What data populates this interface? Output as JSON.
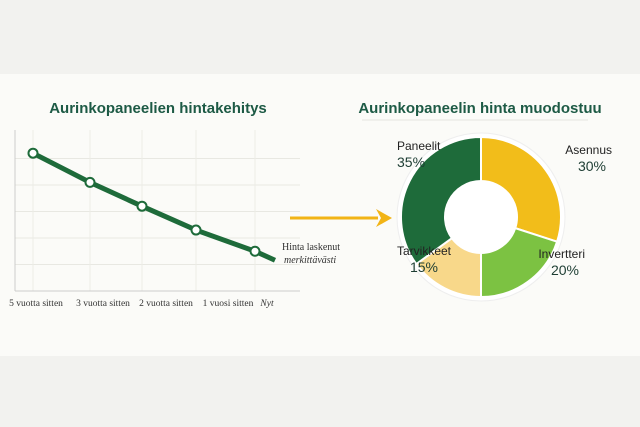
{
  "chart_data": [
    {
      "type": "line",
      "title": "Aurinkopaneelien hintakehitys",
      "categories": [
        "5 vuotta sitten",
        "3 vuotta sitten",
        "2 vuotta sitten",
        "1 vuosi sitten",
        "Nyt"
      ],
      "values": [
        5.2,
        4.1,
        3.2,
        2.3,
        1.5
      ],
      "ylim": [
        0,
        5.5
      ],
      "grid": true,
      "annotation": [
        "Hinta laskenut",
        "merkittävästi"
      ],
      "color": "#1e6b3a"
    },
    {
      "type": "pie",
      "title": "Aurinkopaneelin hinta muodostuu",
      "donut": true,
      "slices": [
        {
          "label": "Asennus",
          "value": 30,
          "pct": "30%",
          "color": "#f2bd1a"
        },
        {
          "label": "Invertteri",
          "value": 20,
          "pct": "20%",
          "color": "#7cc242"
        },
        {
          "label": "Tarvikkeet",
          "value": 15,
          "pct": "15%",
          "color": "#f8d88a"
        },
        {
          "label": "Paneelit",
          "value": 35,
          "pct": "35%",
          "color": "#1e6b3a"
        }
      ]
    }
  ],
  "arrow_color": "#f2b416"
}
